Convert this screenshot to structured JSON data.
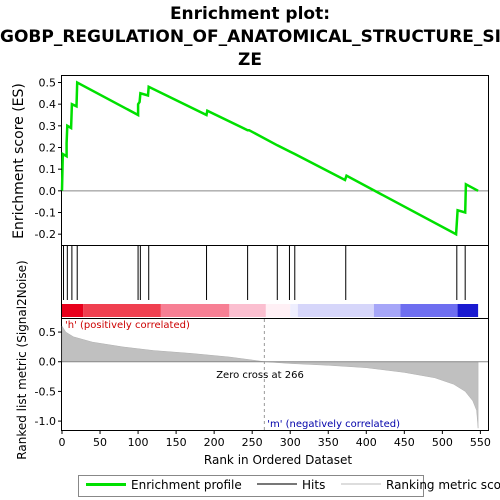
{
  "title_lines": [
    "Enrichment plot:",
    "GOBP_REGULATION_OF_ANATOMICAL_STRUCTURE_SI",
    "ZE"
  ],
  "colors": {
    "profile": "#00e000",
    "positive": "#ff0000",
    "negative": "#0000cc",
    "metric": "#c0c0c0",
    "hits": "#000000"
  },
  "chart_data": [
    {
      "type": "line",
      "name": "enrichment-score-panel",
      "ylabel": "Enrichment score (ES)",
      "ylim": [
        -0.25,
        0.53
      ],
      "xlim": [
        0,
        560
      ],
      "yticks": [
        -0.2,
        -0.1,
        0.0,
        0.1,
        0.2,
        0.3,
        0.4,
        0.5
      ],
      "grid": false,
      "series": [
        {
          "name": "Enrichment profile",
          "points": [
            [
              0,
              0
            ],
            [
              1,
              0.17
            ],
            [
              6,
              0.16
            ],
            [
              6,
              0.22
            ],
            [
              7,
              0.3
            ],
            [
              12,
              0.29
            ],
            [
              13,
              0.4
            ],
            [
              19,
              0.39
            ],
            [
              20,
              0.5
            ],
            [
              100,
              0.35
            ],
            [
              100,
              0.4
            ],
            [
              102,
              0.41
            ],
            [
              103,
              0.45
            ],
            [
              113,
              0.44
            ],
            [
              114,
              0.48
            ],
            [
              190,
              0.35
            ],
            [
              191,
              0.37
            ],
            [
              244,
              0.28
            ],
            [
              246,
              0.28
            ],
            [
              283,
              0.21
            ],
            [
              300,
              0.18
            ],
            [
              306,
              0.17
            ],
            [
              372,
              0.05
            ],
            [
              374,
              0.07
            ],
            [
              518,
              -0.2
            ],
            [
              520,
              -0.09
            ],
            [
              530,
              -0.1
            ],
            [
              531,
              0.03
            ],
            [
              547,
              0.0
            ]
          ]
        }
      ]
    },
    {
      "type": "scatter",
      "name": "hits-panel",
      "hits": [
        2,
        7,
        13,
        20,
        100,
        103,
        114,
        190,
        244,
        283,
        299,
        306,
        373,
        519,
        530
      ]
    },
    {
      "type": "area",
      "name": "ranked-list-metric-panel",
      "xlabel": "Rank in Ordered Dataset",
      "ylabel": "Ranked list metric (Signal2Noise)",
      "ylim": [
        -1.15,
        0.72
      ],
      "xlim": [
        0,
        560
      ],
      "xticks": [
        0,
        50,
        100,
        150,
        200,
        250,
        300,
        350,
        400,
        450,
        500,
        550
      ],
      "yticks": [
        -1.0,
        -0.5,
        0.0,
        0.5
      ],
      "zero_cross": 266,
      "series": [
        {
          "name": "Ranking metric scores",
          "points": [
            [
              0,
              0.6
            ],
            [
              5,
              0.5
            ],
            [
              15,
              0.42
            ],
            [
              40,
              0.33
            ],
            [
              80,
              0.25
            ],
            [
              120,
              0.19
            ],
            [
              170,
              0.14
            ],
            [
              220,
              0.08
            ],
            [
              250,
              0.03
            ],
            [
              266,
              0.0
            ],
            [
              300,
              -0.03
            ],
            [
              350,
              -0.06
            ],
            [
              400,
              -0.1
            ],
            [
              450,
              -0.18
            ],
            [
              490,
              -0.27
            ],
            [
              515,
              -0.38
            ],
            [
              530,
              -0.5
            ],
            [
              540,
              -0.66
            ],
            [
              545,
              -0.82
            ],
            [
              547,
              -1.12
            ]
          ]
        }
      ],
      "annotations": [
        "'h' (positively correlated)",
        "Zero cross at 266",
        "'m' (negatively correlated)"
      ]
    }
  ],
  "legend": {
    "profile_label": "Enrichment profile",
    "hits_label": "Hits",
    "metric_label": "Ranking metric scores"
  },
  "axis_labels": {
    "es": "Enrichment score (ES)",
    "metric": "Ranked list metric (Signal2Noise)",
    "rank": "Rank in Ordered Dataset"
  },
  "annotations": {
    "positive": "'h' (positively correlated)",
    "zero_cross": "Zero cross at 266",
    "negative": "'m' (negatively correlated)"
  }
}
